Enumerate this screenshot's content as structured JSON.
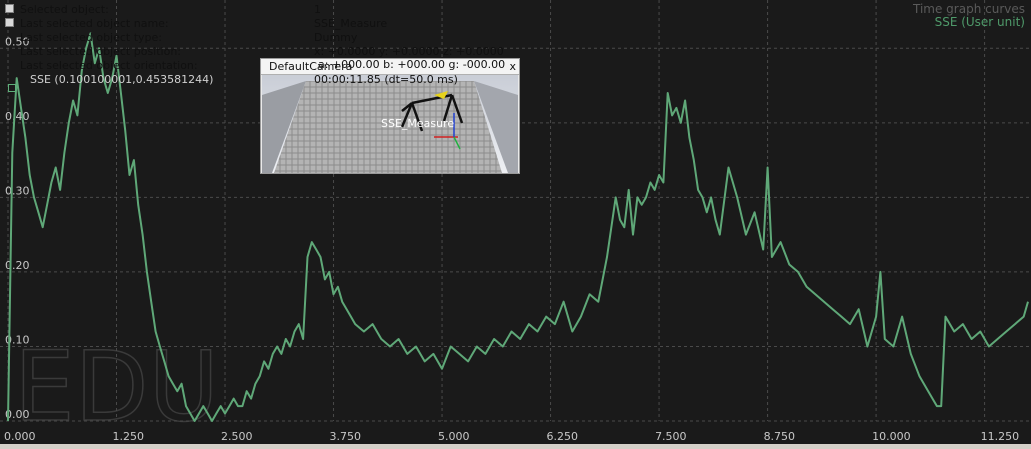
{
  "header": {
    "title": "Time graph curves",
    "series_label": "SSE (User unit)"
  },
  "info": {
    "selected_object_label": "Selected object:",
    "selected_object_value": "1",
    "last_name_label": "Last selected object name:",
    "last_name_value": "SSE_Measure",
    "last_type_label": "Last selected object type:",
    "last_type_value": "Dummy",
    "last_position_label": "Last selected object position:",
    "last_position_value": "x: +0.0000  y: +0.0000  z: +0.0000",
    "last_orientation_label": "Last selected object orientation:"
  },
  "readout": {
    "sse_value": "SSE (0.100100001,0.453581244)"
  },
  "camera_view": {
    "title": "DefaultCamera",
    "close": "x",
    "angles": "a: +000.00    b: +000.00    g: -000.00",
    "time": "00:00:11.85 (dt=50.0 ms)",
    "object_label": "SSE_Measure"
  },
  "watermark": "EDU",
  "colors": {
    "background": "#1a1a1a",
    "grid": "#4a4a4a",
    "series": "#5fa878",
    "title": "#5a5a5a",
    "series_label": "#4f9a6a"
  },
  "chart_data": {
    "type": "line",
    "title": "Time graph curves",
    "xlabel": "",
    "ylabel": "",
    "xlim": [
      0,
      11.75
    ],
    "ylim": [
      0,
      0.55
    ],
    "x_ticks": [
      "0.000",
      "1.250",
      "2.500",
      "3.750",
      "5.000",
      "6.250",
      "7.500",
      "8.750",
      "10.000",
      "11.250"
    ],
    "y_ticks": [
      "0.00",
      "0.10",
      "0.20",
      "0.30",
      "0.40",
      "0.50"
    ],
    "grid": true,
    "series": [
      {
        "name": "SSE (User unit)",
        "x": [
          0,
          0.05,
          0.1,
          0.15,
          0.2,
          0.25,
          0.3,
          0.35,
          0.4,
          0.45,
          0.5,
          0.55,
          0.6,
          0.65,
          0.7,
          0.75,
          0.8,
          0.85,
          0.9,
          0.95,
          1.0,
          1.05,
          1.1,
          1.15,
          1.2,
          1.25,
          1.3,
          1.35,
          1.4,
          1.45,
          1.5,
          1.55,
          1.6,
          1.65,
          1.7,
          1.75,
          1.8,
          1.85,
          1.9,
          1.95,
          2.0,
          2.05,
          2.1,
          2.15,
          2.2,
          2.25,
          2.3,
          2.35,
          2.4,
          2.45,
          2.5,
          2.55,
          2.6,
          2.65,
          2.7,
          2.75,
          2.8,
          2.85,
          2.9,
          2.95,
          3.0,
          3.05,
          3.1,
          3.15,
          3.2,
          3.25,
          3.3,
          3.35,
          3.4,
          3.45,
          3.5,
          3.55,
          3.6,
          3.65,
          3.7,
          3.75,
          3.8,
          3.85,
          3.9,
          3.95,
          4.0,
          4.1,
          4.2,
          4.3,
          4.4,
          4.5,
          4.6,
          4.7,
          4.8,
          4.9,
          5.0,
          5.1,
          5.2,
          5.3,
          5.4,
          5.5,
          5.6,
          5.7,
          5.8,
          5.9,
          6.0,
          6.1,
          6.2,
          6.3,
          6.4,
          6.5,
          6.6,
          6.7,
          6.8,
          6.9,
          7.0,
          7.05,
          7.1,
          7.15,
          7.2,
          7.25,
          7.3,
          7.35,
          7.4,
          7.45,
          7.5,
          7.55,
          7.6,
          7.65,
          7.7,
          7.75,
          7.8,
          7.85,
          7.9,
          7.95,
          8.0,
          8.05,
          8.1,
          8.15,
          8.2,
          8.3,
          8.4,
          8.5,
          8.6,
          8.7,
          8.75,
          8.8,
          8.9,
          9.0,
          9.1,
          9.2,
          9.3,
          9.4,
          9.5,
          9.6,
          9.7,
          9.8,
          9.9,
          10.0,
          10.05,
          10.1,
          10.2,
          10.3,
          10.4,
          10.5,
          10.6,
          10.7,
          10.75,
          10.8,
          10.9,
          11.0,
          11.1,
          11.2,
          11.3,
          11.4,
          11.5,
          11.6,
          11.7,
          11.75
        ],
        "values": [
          0.0,
          0.36,
          0.46,
          0.42,
          0.38,
          0.33,
          0.3,
          0.28,
          0.26,
          0.29,
          0.32,
          0.34,
          0.31,
          0.36,
          0.4,
          0.43,
          0.41,
          0.47,
          0.5,
          0.52,
          0.48,
          0.5,
          0.46,
          0.44,
          0.46,
          0.49,
          0.44,
          0.39,
          0.33,
          0.35,
          0.29,
          0.25,
          0.2,
          0.16,
          0.12,
          0.1,
          0.08,
          0.06,
          0.05,
          0.04,
          0.05,
          0.02,
          0.01,
          0.0,
          0.01,
          0.02,
          0.01,
          0.0,
          0.01,
          0.02,
          0.01,
          0.02,
          0.03,
          0.02,
          0.02,
          0.04,
          0.03,
          0.05,
          0.06,
          0.08,
          0.07,
          0.09,
          0.1,
          0.09,
          0.11,
          0.1,
          0.12,
          0.13,
          0.11,
          0.22,
          0.24,
          0.23,
          0.22,
          0.19,
          0.2,
          0.17,
          0.18,
          0.16,
          0.15,
          0.14,
          0.13,
          0.12,
          0.13,
          0.11,
          0.1,
          0.11,
          0.09,
          0.1,
          0.08,
          0.09,
          0.07,
          0.1,
          0.09,
          0.08,
          0.1,
          0.09,
          0.11,
          0.1,
          0.12,
          0.11,
          0.13,
          0.12,
          0.14,
          0.13,
          0.16,
          0.12,
          0.14,
          0.17,
          0.16,
          0.22,
          0.3,
          0.27,
          0.26,
          0.31,
          0.25,
          0.3,
          0.29,
          0.3,
          0.32,
          0.31,
          0.33,
          0.32,
          0.44,
          0.41,
          0.42,
          0.4,
          0.43,
          0.38,
          0.35,
          0.31,
          0.3,
          0.28,
          0.3,
          0.27,
          0.25,
          0.34,
          0.3,
          0.25,
          0.28,
          0.23,
          0.34,
          0.22,
          0.24,
          0.21,
          0.2,
          0.18,
          0.17,
          0.16,
          0.15,
          0.14,
          0.13,
          0.15,
          0.1,
          0.14,
          0.2,
          0.11,
          0.1,
          0.14,
          0.09,
          0.06,
          0.04,
          0.02,
          0.02,
          0.14,
          0.12,
          0.13,
          0.11,
          0.12,
          0.1,
          0.11,
          0.12,
          0.13,
          0.14,
          0.16
        ]
      }
    ]
  }
}
